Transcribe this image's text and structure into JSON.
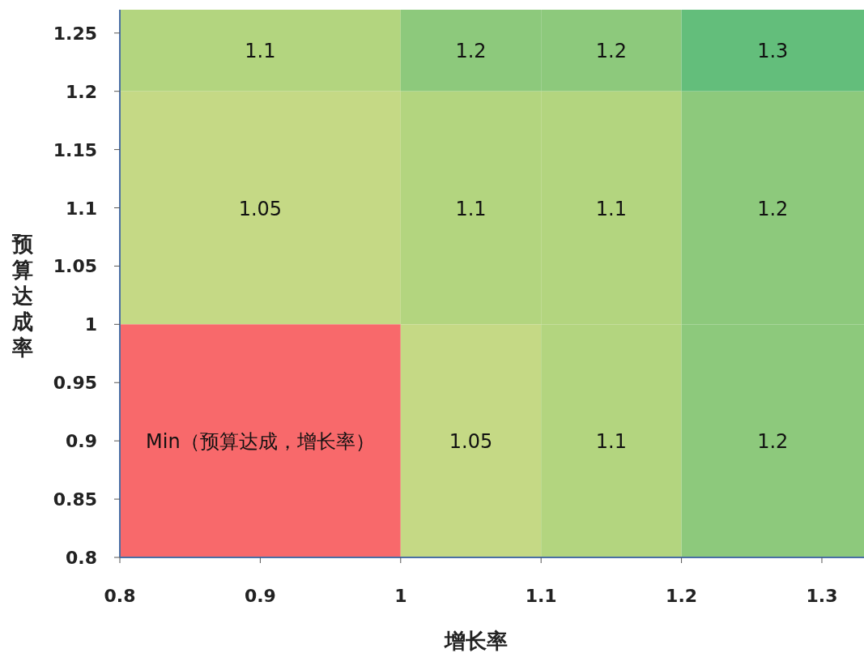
{
  "chart_data": {
    "type": "heatmap",
    "xlabel": "增长率",
    "ylabel": "预算达成率",
    "x": [
      0.9,
      1.05,
      1.15,
      1.265
    ],
    "y": [
      1.235,
      1.1,
      0.9
    ],
    "cells": [
      [
        1.1,
        1.2,
        1.2,
        1.3
      ],
      [
        1.05,
        1.1,
        1.1,
        1.2
      ],
      [
        null,
        1.05,
        1.1,
        1.2
      ]
    ],
    "cell_labels": [
      [
        "1.1",
        "1.2",
        "1.2",
        "1.3"
      ],
      [
        "1.05",
        "1.1",
        "1.1",
        "1.2"
      ],
      [
        "Min（预算达成，增长率）",
        "1.05",
        "1.1",
        "1.2"
      ]
    ],
    "colors": [
      "#f8696b",
      "#c5d985",
      "#b3d57f",
      "#8dc97c",
      "#63be7b"
    ],
    "xlim": [
      0.8,
      1.33
    ],
    "xticks": [
      0.8,
      0.9,
      1,
      1.1,
      1.2,
      1.3
    ],
    "ylim": [
      0.8,
      1.27
    ],
    "yticks": [
      0.8,
      0.85,
      0.9,
      0.95,
      1,
      1.05,
      1.1,
      1.15,
      1.2,
      1.25
    ]
  }
}
